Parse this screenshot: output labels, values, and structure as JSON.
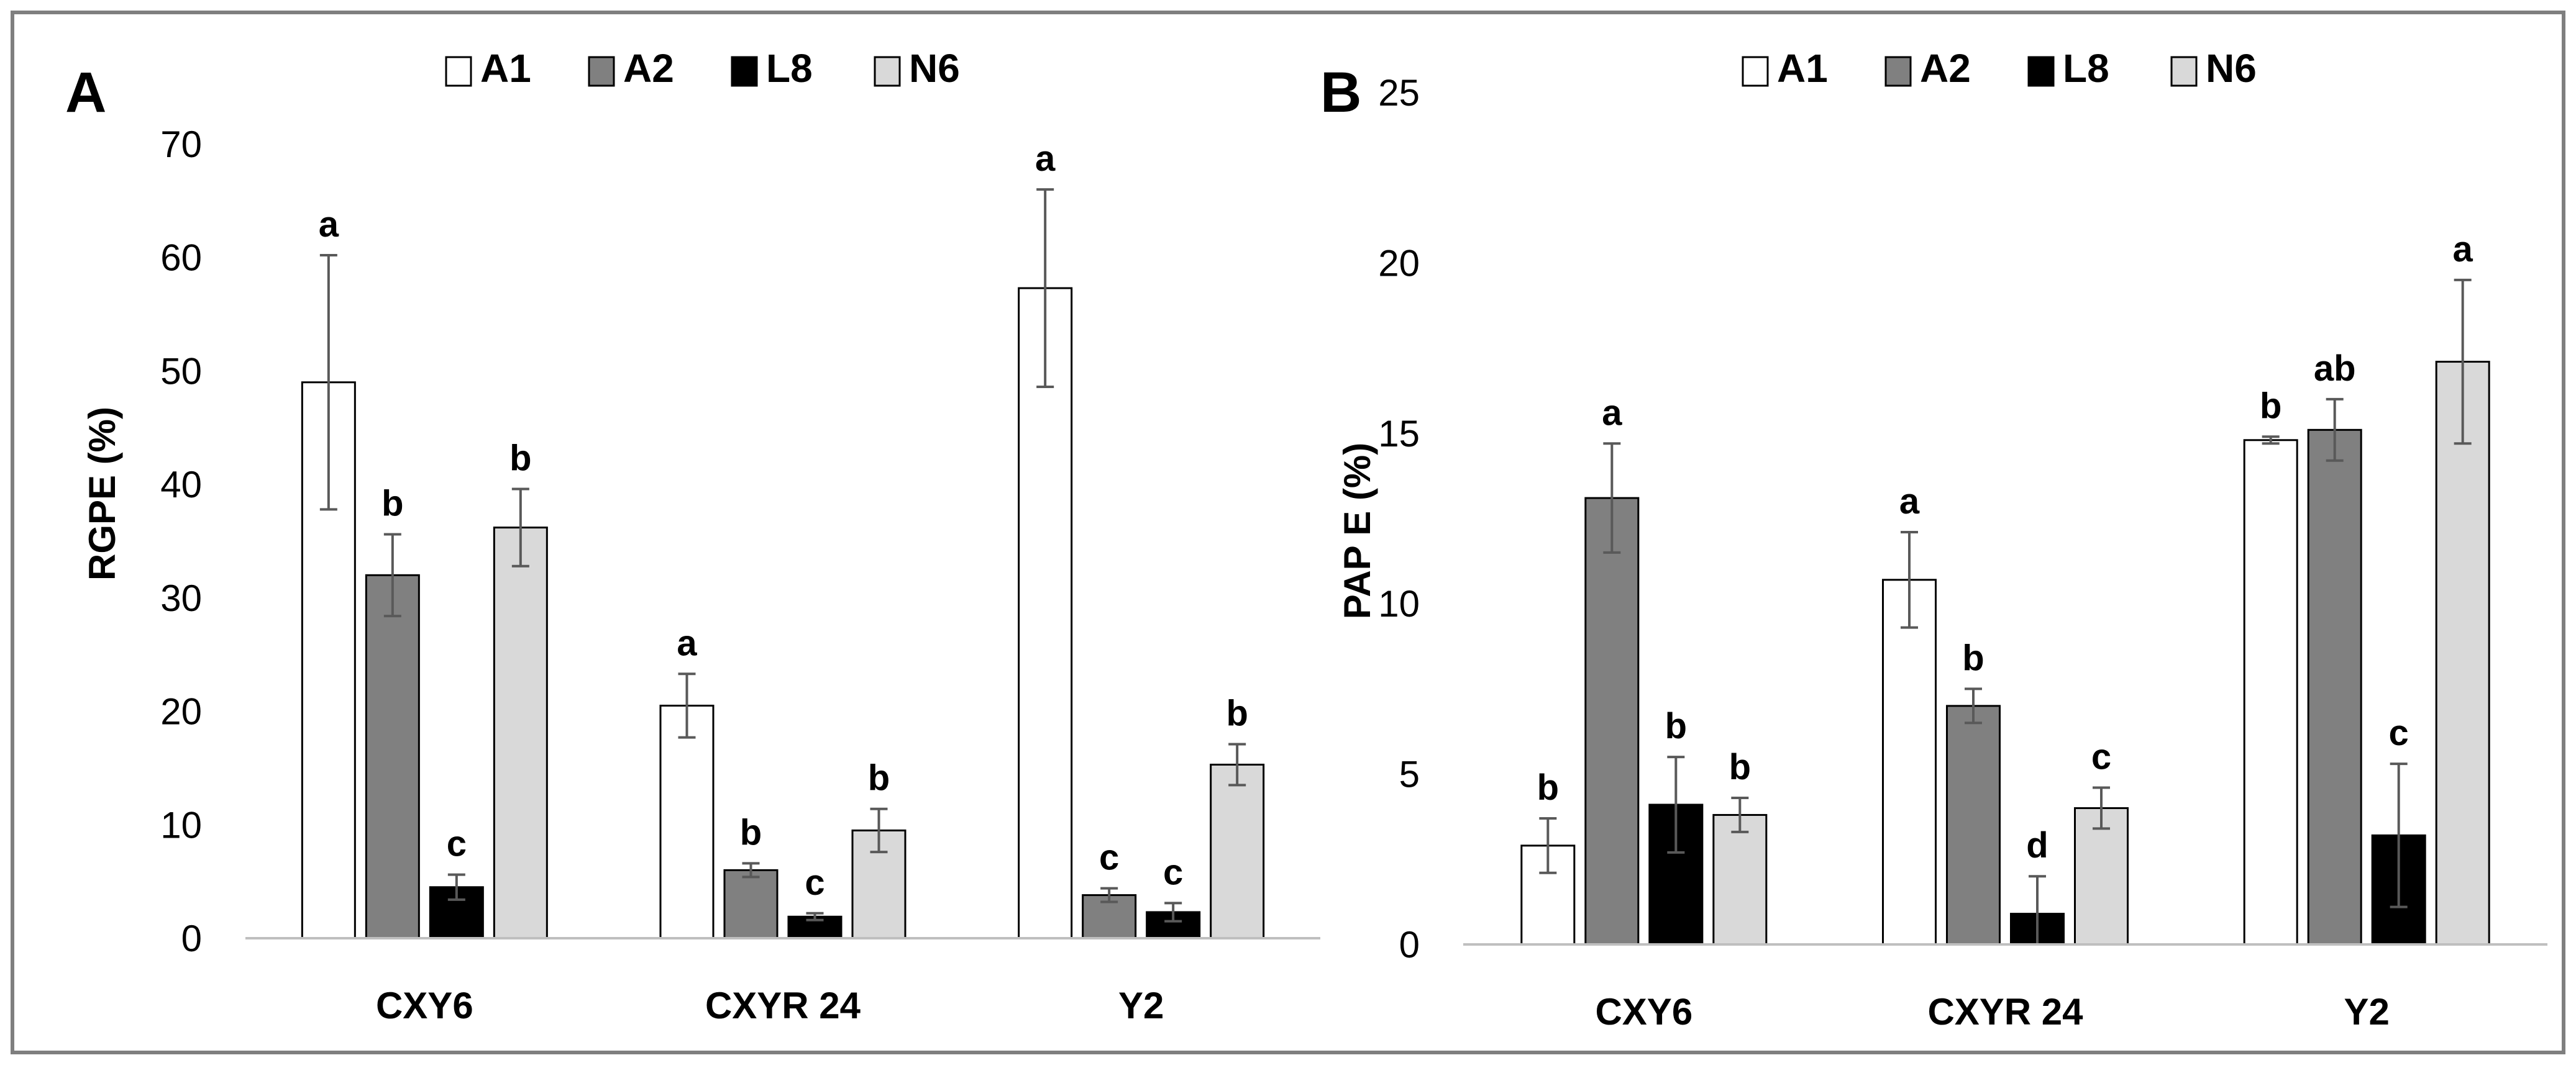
{
  "colors": {
    "A1": "#ffffff",
    "A2": "#808080",
    "L8": "#000000",
    "N6": "#d9d9d9",
    "frame": "#7f7f7f",
    "axis": "#bfbfbf",
    "errorbar": "#595959"
  },
  "chart_data": [
    {
      "type": "bar",
      "panel": "A",
      "title": "",
      "xlabel": "",
      "ylabel": "RGPE (%)",
      "ylim": [
        0,
        70
      ],
      "yticks": [
        "0",
        "10",
        "20",
        "30",
        "40",
        "50",
        "60",
        "70"
      ],
      "categories": [
        "CXY6",
        "CXYR 24",
        "Y2"
      ],
      "legend_position": "top-center",
      "grid": false,
      "series": [
        {
          "name": "A1",
          "values": [
            49.0,
            20.5,
            57.3
          ],
          "errors": [
            11.2,
            2.8,
            8.7
          ],
          "labels": [
            "a",
            "a",
            "a"
          ]
        },
        {
          "name": "A2",
          "values": [
            32.0,
            6.0,
            3.8
          ],
          "errors": [
            3.6,
            0.6,
            0.6
          ],
          "labels": [
            "b",
            "b",
            "c"
          ]
        },
        {
          "name": "L8",
          "values": [
            4.5,
            1.9,
            2.3
          ],
          "errors": [
            1.1,
            0.3,
            0.8
          ],
          "labels": [
            "c",
            "c",
            "c"
          ]
        },
        {
          "name": "N6",
          "values": [
            36.2,
            9.5,
            15.3
          ],
          "errors": [
            3.4,
            1.9,
            1.8
          ],
          "labels": [
            "b",
            "b",
            "b"
          ]
        }
      ]
    },
    {
      "type": "bar",
      "panel": "B",
      "title": "",
      "xlabel": "",
      "ylabel": "PAP E (%)",
      "ylim": [
        0,
        25
      ],
      "yticks": [
        "0",
        "5",
        "10",
        "15",
        "20",
        "25"
      ],
      "categories": [
        "CXY6",
        "CXYR 24",
        "Y2"
      ],
      "legend_position": "top-center",
      "grid": false,
      "series": [
        {
          "name": "A1",
          "values": [
            2.9,
            10.7,
            14.8
          ],
          "errors": [
            0.8,
            1.4,
            0.1
          ],
          "labels": [
            "b",
            "a",
            "b"
          ]
        },
        {
          "name": "A2",
          "values": [
            13.1,
            7.0,
            15.1
          ],
          "errors": [
            1.6,
            0.5,
            0.9
          ],
          "labels": [
            "a",
            "b",
            "ab"
          ]
        },
        {
          "name": "L8",
          "values": [
            4.1,
            0.9,
            3.2
          ],
          "errors": [
            1.4,
            1.1,
            2.1
          ],
          "labels": [
            "b",
            "d",
            "c"
          ]
        },
        {
          "name": "N6",
          "values": [
            3.8,
            4.0,
            17.1
          ],
          "errors": [
            0.5,
            0.6,
            2.4
          ],
          "labels": [
            "b",
            "c",
            "a"
          ]
        }
      ]
    }
  ]
}
